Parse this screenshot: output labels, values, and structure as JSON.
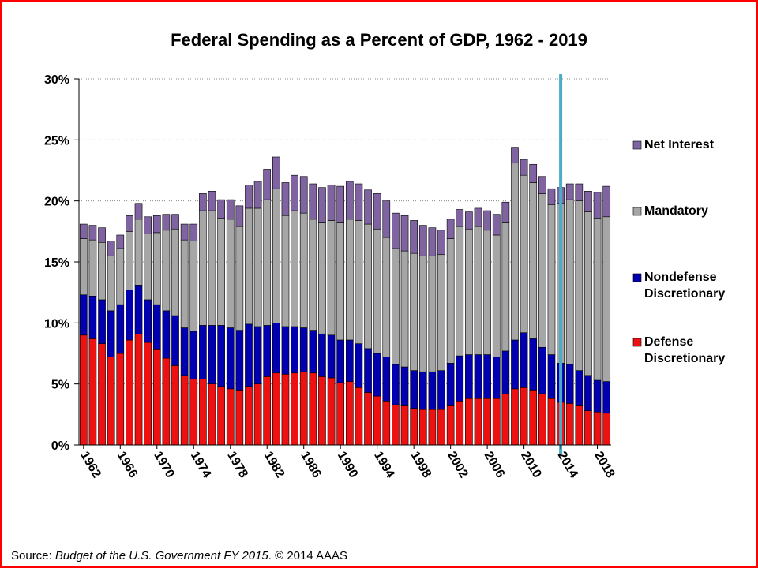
{
  "colors": {
    "Net Interest": "#8064a2",
    "Mandatory": "#a6a6a6",
    "Nondefense Discretionary": "#0000b0",
    "Defense Discretionary": "#ee1111",
    "marker_line": "#4bacc6",
    "frame": "#ff0000"
  },
  "source": {
    "prefix": "Source: ",
    "italic": "Budget of the U.S. Government FY 2015",
    "suffix": ". © 2014 AAAS"
  },
  "chart_data": {
    "type": "bar",
    "stacked": true,
    "title": "Federal Spending as a Percent of GDP, 1962 - 2019",
    "xlabel": "",
    "ylabel": "",
    "ylim": [
      0,
      30
    ],
    "yticks": [
      "0%",
      "5%",
      "10%",
      "15%",
      "20%",
      "25%",
      "30%"
    ],
    "grid": "horizontal",
    "legend_position": "right",
    "legend": [
      {
        "name": "Net Interest",
        "lines": [
          "Net Interest"
        ]
      },
      {
        "name": "Mandatory",
        "lines": [
          "Mandatory"
        ]
      },
      {
        "name": "Nondefense Discretionary",
        "lines": [
          "Nondefense",
          "Discretionary"
        ]
      },
      {
        "name": "Defense Discretionary",
        "lines": [
          "Defense",
          "Discretionary"
        ]
      }
    ],
    "categories": [
      1962,
      1963,
      1964,
      1965,
      1966,
      1967,
      1968,
      1969,
      1970,
      1971,
      1972,
      1973,
      1974,
      1975,
      1976,
      1977,
      1978,
      1979,
      1980,
      1981,
      1982,
      1983,
      1984,
      1985,
      1986,
      1987,
      1988,
      1989,
      1990,
      1991,
      1992,
      1993,
      1994,
      1995,
      1996,
      1997,
      1998,
      1999,
      2000,
      2001,
      2002,
      2003,
      2004,
      2005,
      2006,
      2007,
      2008,
      2009,
      2010,
      2011,
      2012,
      2013,
      2014,
      2015,
      2016,
      2017,
      2018,
      2019
    ],
    "xtick_labels": [
      "1962",
      "1966",
      "1970",
      "1974",
      "1978",
      "1982",
      "1986",
      "1990",
      "1994",
      "1998",
      "2002",
      "2006",
      "2010",
      "2014",
      "2018"
    ],
    "marker_year": 2014,
    "series": [
      {
        "name": "Defense Discretionary",
        "values": [
          9.0,
          8.7,
          8.3,
          7.2,
          7.5,
          8.6,
          9.1,
          8.4,
          7.8,
          7.1,
          6.5,
          5.7,
          5.4,
          5.4,
          5.0,
          4.8,
          4.6,
          4.5,
          4.8,
          5.0,
          5.6,
          5.9,
          5.8,
          5.9,
          6.0,
          5.9,
          5.6,
          5.5,
          5.1,
          5.2,
          4.7,
          4.3,
          4.0,
          3.6,
          3.3,
          3.2,
          3.0,
          2.9,
          2.9,
          2.9,
          3.2,
          3.6,
          3.8,
          3.8,
          3.8,
          3.8,
          4.2,
          4.6,
          4.7,
          4.5,
          4.2,
          3.8,
          3.5,
          3.4,
          3.2,
          2.8,
          2.7,
          2.6
        ]
      },
      {
        "name": "Nondefense Discretionary",
        "values": [
          3.3,
          3.5,
          3.6,
          3.8,
          4.0,
          4.1,
          4.0,
          3.5,
          3.7,
          3.9,
          4.1,
          3.9,
          3.9,
          4.4,
          4.8,
          5.0,
          5.0,
          4.9,
          5.1,
          4.7,
          4.2,
          4.1,
          3.9,
          3.8,
          3.6,
          3.5,
          3.5,
          3.5,
          3.5,
          3.4,
          3.6,
          3.6,
          3.5,
          3.6,
          3.3,
          3.2,
          3.1,
          3.1,
          3.1,
          3.2,
          3.5,
          3.7,
          3.6,
          3.6,
          3.6,
          3.4,
          3.5,
          4.0,
          4.5,
          4.2,
          3.8,
          3.6,
          3.2,
          3.2,
          2.9,
          2.9,
          2.6,
          2.6
        ]
      },
      {
        "name": "Mandatory",
        "values": [
          4.6,
          4.6,
          4.7,
          4.5,
          4.6,
          4.8,
          5.4,
          5.4,
          5.9,
          6.6,
          7.1,
          7.2,
          7.4,
          9.4,
          9.4,
          8.8,
          8.9,
          8.5,
          9.5,
          9.7,
          10.3,
          11.0,
          9.1,
          9.5,
          9.4,
          9.1,
          9.1,
          9.4,
          9.6,
          9.9,
          10.1,
          10.2,
          10.2,
          9.8,
          9.5,
          9.5,
          9.6,
          9.5,
          9.5,
          9.5,
          10.2,
          10.6,
          10.3,
          10.5,
          10.2,
          10.0,
          10.5,
          14.5,
          12.9,
          12.8,
          12.6,
          12.3,
          13.1,
          13.5,
          13.9,
          13.4,
          13.3,
          13.5
        ]
      },
      {
        "name": "Net Interest",
        "values": [
          1.2,
          1.2,
          1.2,
          1.2,
          1.1,
          1.3,
          1.3,
          1.4,
          1.4,
          1.3,
          1.2,
          1.3,
          1.4,
          1.4,
          1.6,
          1.5,
          1.6,
          1.7,
          1.9,
          2.2,
          2.5,
          2.6,
          2.7,
          2.9,
          3.0,
          2.9,
          2.9,
          2.9,
          3.0,
          3.1,
          3.0,
          2.8,
          2.9,
          3.0,
          2.9,
          2.9,
          2.7,
          2.5,
          2.3,
          2.0,
          1.6,
          1.4,
          1.4,
          1.5,
          1.6,
          1.7,
          1.7,
          1.3,
          1.3,
          1.5,
          1.4,
          1.3,
          1.3,
          1.3,
          1.4,
          1.7,
          2.1,
          2.5
        ]
      }
    ]
  }
}
